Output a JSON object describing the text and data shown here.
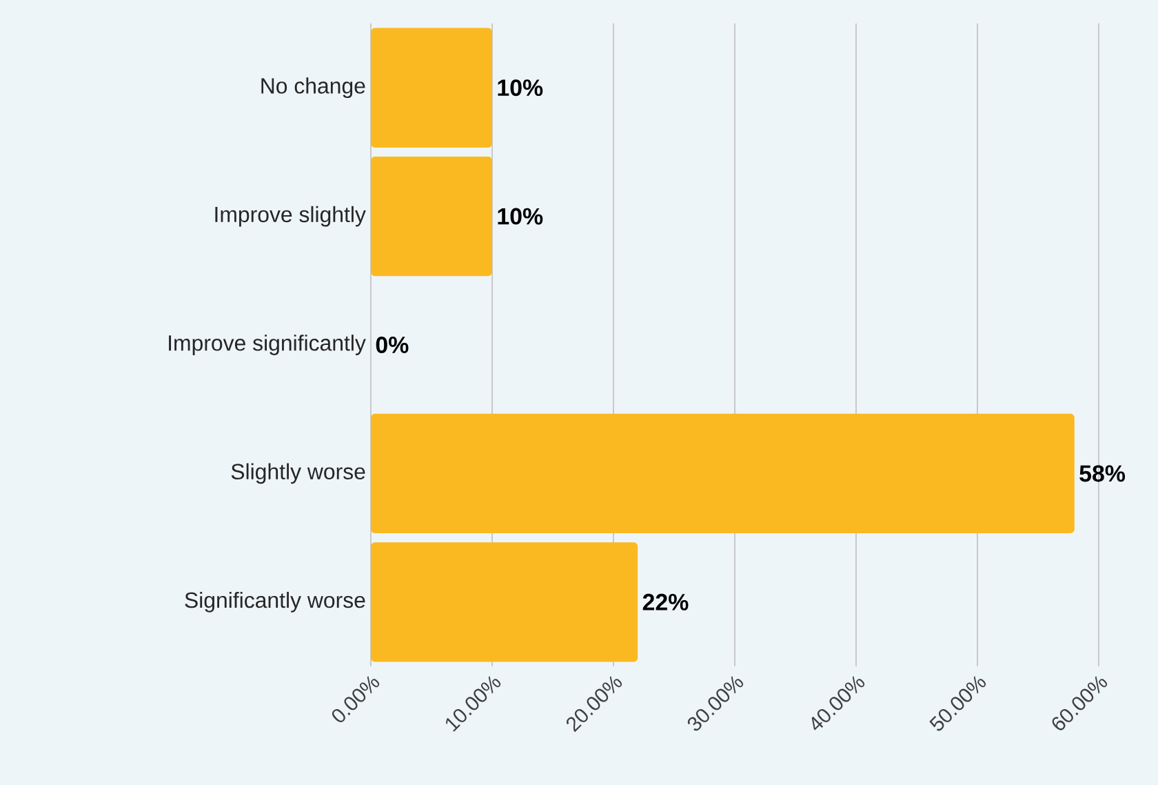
{
  "chart_data": {
    "type": "bar",
    "orientation": "horizontal",
    "categories": [
      "No change",
      "Improve slightly",
      "Improve significantly",
      "Slightly worse",
      "Significantly worse"
    ],
    "values": [
      10,
      10,
      0,
      58,
      22
    ],
    "value_labels": [
      "10%",
      "10%",
      "0%",
      "58%",
      "22%"
    ],
    "color": "#fbb921",
    "xlim": [
      0,
      60
    ],
    "xticks": [
      {
        "value": 0,
        "label": "0.00%"
      },
      {
        "value": 10,
        "label": "10.00%"
      },
      {
        "value": 20,
        "label": "20.00%"
      },
      {
        "value": 30,
        "label": "30.00%"
      },
      {
        "value": 40,
        "label": "40.00%"
      },
      {
        "value": 50,
        "label": "50.00%"
      },
      {
        "value": 60,
        "label": "60.00%"
      }
    ],
    "grid": "x"
  }
}
